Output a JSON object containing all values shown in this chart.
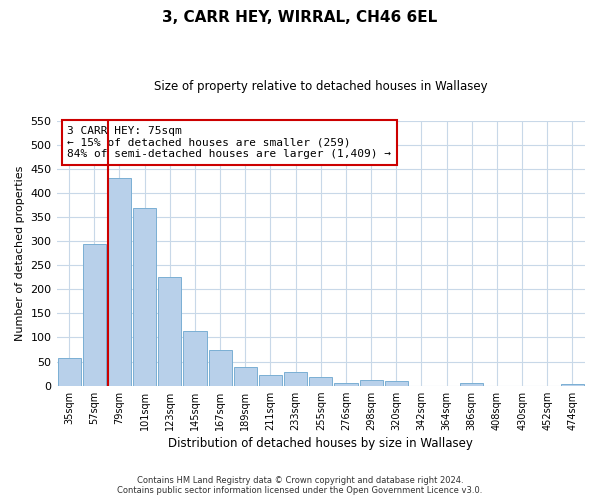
{
  "title": "3, CARR HEY, WIRRAL, CH46 6EL",
  "subtitle": "Size of property relative to detached houses in Wallasey",
  "xlabel": "Distribution of detached houses by size in Wallasey",
  "ylabel": "Number of detached properties",
  "bar_color": "#b8d0ea",
  "bar_edge_color": "#7aafd4",
  "marker_line_color": "#cc0000",
  "categories": [
    "35sqm",
    "57sqm",
    "79sqm",
    "101sqm",
    "123sqm",
    "145sqm",
    "167sqm",
    "189sqm",
    "211sqm",
    "233sqm",
    "255sqm",
    "276sqm",
    "298sqm",
    "320sqm",
    "342sqm",
    "364sqm",
    "386sqm",
    "408sqm",
    "430sqm",
    "452sqm",
    "474sqm"
  ],
  "values": [
    57,
    293,
    430,
    368,
    226,
    113,
    75,
    38,
    22,
    29,
    18,
    5,
    12,
    9,
    0,
    0,
    5,
    0,
    0,
    0,
    4
  ],
  "marker_index": 2,
  "ylim": [
    0,
    550
  ],
  "yticks": [
    0,
    50,
    100,
    150,
    200,
    250,
    300,
    350,
    400,
    450,
    500,
    550
  ],
  "annotation_title": "3 CARR HEY: 75sqm",
  "annotation_line1": "← 15% of detached houses are smaller (259)",
  "annotation_line2": "84% of semi-detached houses are larger (1,409) →",
  "footer_line1": "Contains HM Land Registry data © Crown copyright and database right 2024.",
  "footer_line2": "Contains public sector information licensed under the Open Government Licence v3.0.",
  "background_color": "#ffffff",
  "grid_color": "#c8d8e8"
}
